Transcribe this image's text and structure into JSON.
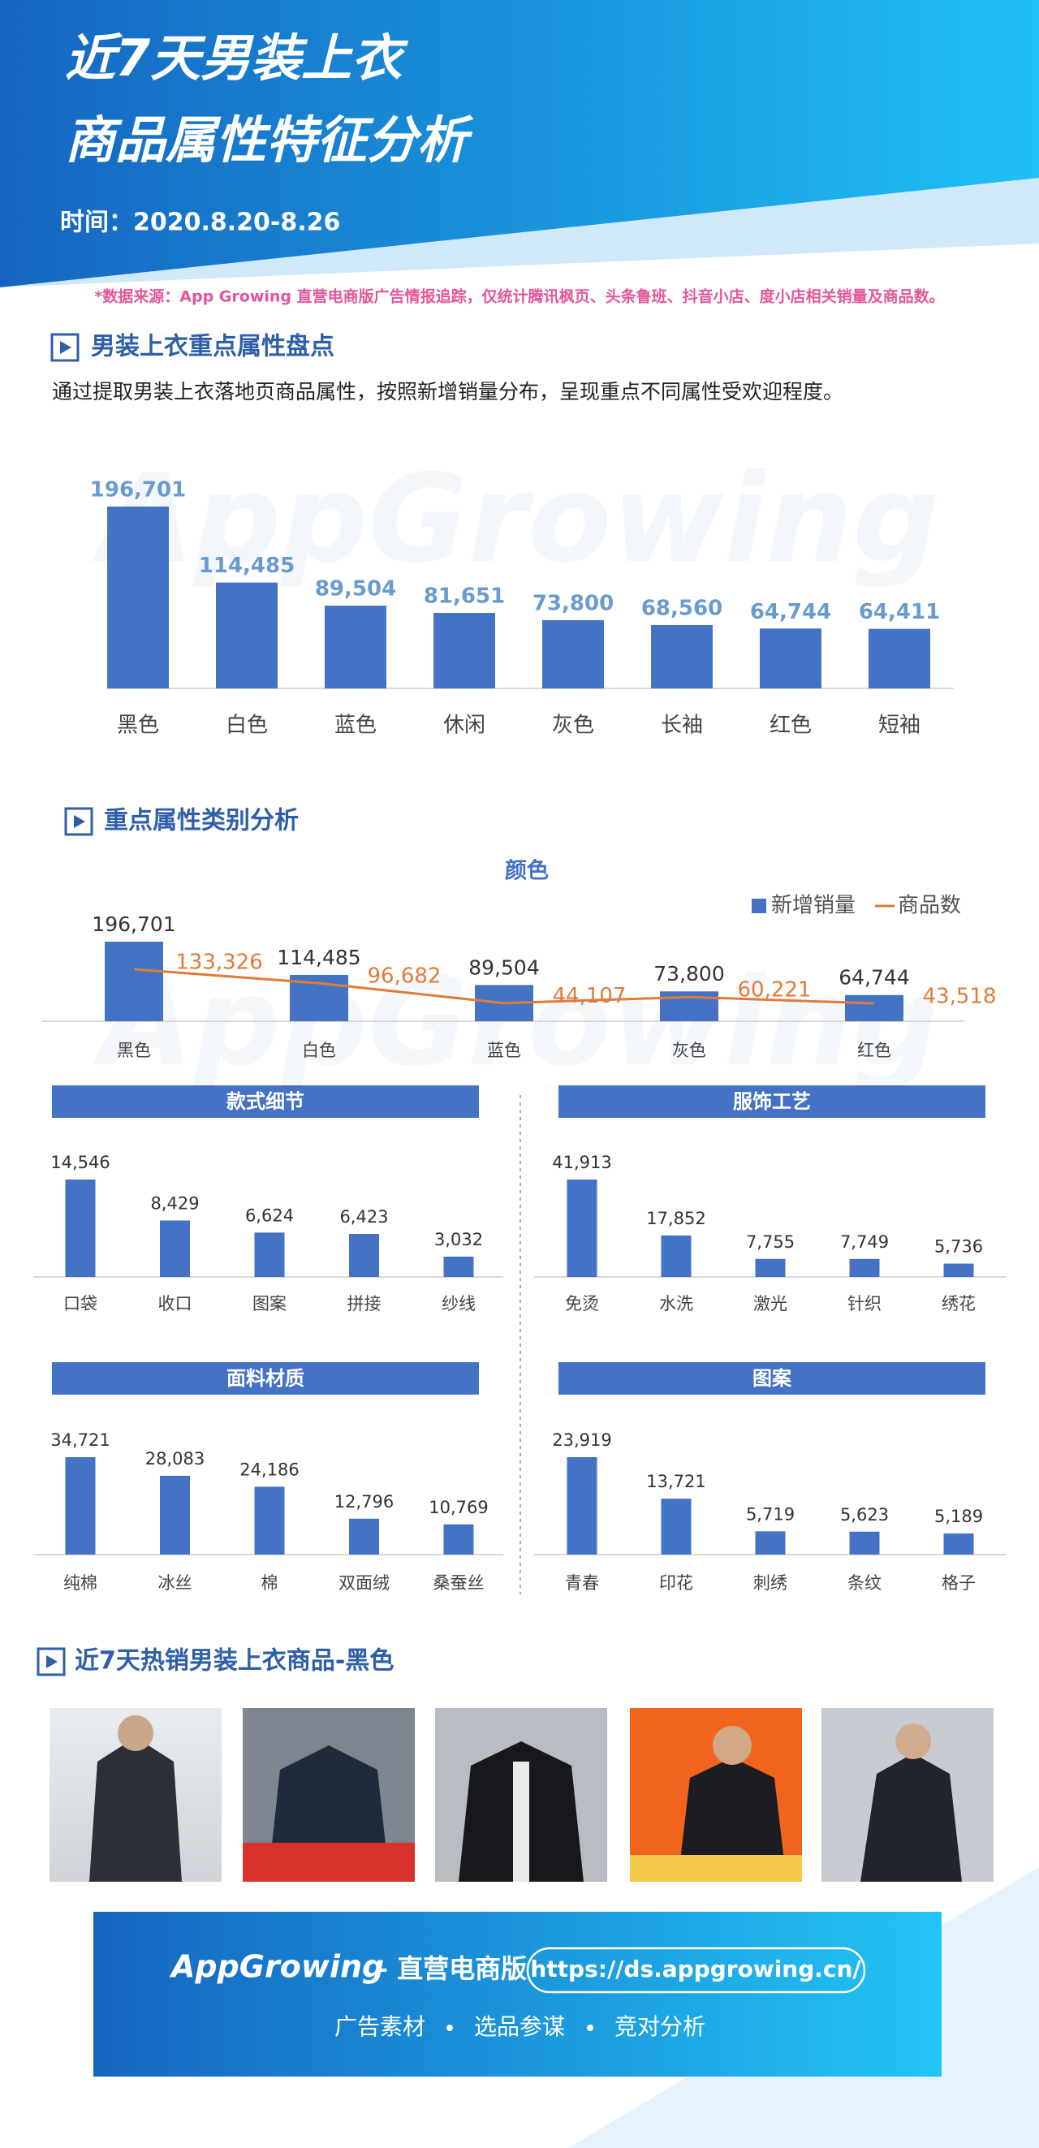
{
  "header": {
    "title_line1": "近7天男装上衣",
    "title_line2": "商品属性特征分析",
    "time": "时间：2020.8.20-8.26"
  },
  "source": "*数据来源：App Growing 直营电商版广告情报追踪，仅统计腾讯枫页、头条鲁班、抖音小店、度小店相关销量及商品数。",
  "watermark": "AppGrowing",
  "sections": [
    {
      "title": "男装上衣重点属性盘点",
      "description": "通过提取男装上衣落地页商品属性，按照新增销量分布，呈现重点不同属性受欢迎程度。"
    },
    {
      "title": "重点属性类别分析"
    },
    {
      "title": "近7天热销男装上衣商品-黑色"
    }
  ],
  "chart_data": [
    {
      "type": "bar",
      "categories": [
        "黑色",
        "白色",
        "蓝色",
        "休闲",
        "灰色",
        "长袖",
        "红色",
        "短袖"
      ],
      "values": [
        196701,
        114485,
        89504,
        81651,
        73800,
        68560,
        64744,
        64411
      ],
      "value_labels": [
        "196,701",
        "114,485",
        "89,504",
        "81,651",
        "73,800",
        "68,560",
        "64,744",
        "64,411"
      ],
      "color": "#4472c4",
      "label_color": "#6a9bd0"
    },
    {
      "type": "combo",
      "title": "颜色",
      "categories": [
        "黑色",
        "白色",
        "蓝色",
        "灰色",
        "红色"
      ],
      "legend": "top-right",
      "series": [
        {
          "name": "新增销量",
          "type": "bar",
          "color": "#4472c4",
          "values": [
            196701,
            114485,
            89504,
            73800,
            64744
          ],
          "value_labels": [
            "196,701",
            "114,485",
            "89,504",
            "73,800",
            "64,744"
          ]
        },
        {
          "name": "商品数",
          "type": "line",
          "axis": "y2",
          "color": "#e07b39",
          "values": [
            133326,
            96682,
            44107,
            60221,
            43518
          ],
          "value_labels": [
            "133,326",
            "96,682",
            "44,107",
            "60,221",
            "43,518"
          ]
        }
      ]
    },
    {
      "type": "bar",
      "title": "款式细节",
      "categories": [
        "口袋",
        "收口",
        "图案",
        "拼接",
        "纱线"
      ],
      "values": [
        14546,
        8429,
        6624,
        6423,
        3032
      ],
      "value_labels": [
        "14,546",
        "8,429",
        "6,624",
        "6,423",
        "3,032"
      ],
      "color": "#4472c4"
    },
    {
      "type": "bar",
      "title": "服饰工艺",
      "categories": [
        "免烫",
        "水洗",
        "激光",
        "针织",
        "绣花"
      ],
      "values": [
        41913,
        17852,
        7755,
        7749,
        5736
      ],
      "value_labels": [
        "41,913",
        "17,852",
        "7,755",
        "7,749",
        "5,736"
      ],
      "color": "#4472c4"
    },
    {
      "type": "bar",
      "title": "面料材质",
      "categories": [
        "纯棉",
        "冰丝",
        "棉",
        "双面绒",
        "桑蚕丝"
      ],
      "values": [
        34721,
        28083,
        24186,
        12796,
        10769
      ],
      "value_labels": [
        "34,721",
        "28,083",
        "24,186",
        "12,796",
        "10,769"
      ],
      "color": "#4472c4"
    },
    {
      "type": "bar",
      "title": "图案",
      "categories": [
        "青春",
        "印花",
        "刺绣",
        "条纹",
        "格子"
      ],
      "values": [
        23919,
        13721,
        5719,
        5623,
        5189
      ],
      "value_labels": [
        "23,919",
        "13,721",
        "5,719",
        "5,623",
        "5,189"
      ],
      "color": "#4472c4"
    }
  ],
  "footer": {
    "brand": "AppGrowing",
    "subtitle": "– 直营电商版",
    "url": "https://ds.appgrowing.cn/",
    "features": [
      "广告素材",
      "选品参谋",
      "竞对分析"
    ]
  }
}
